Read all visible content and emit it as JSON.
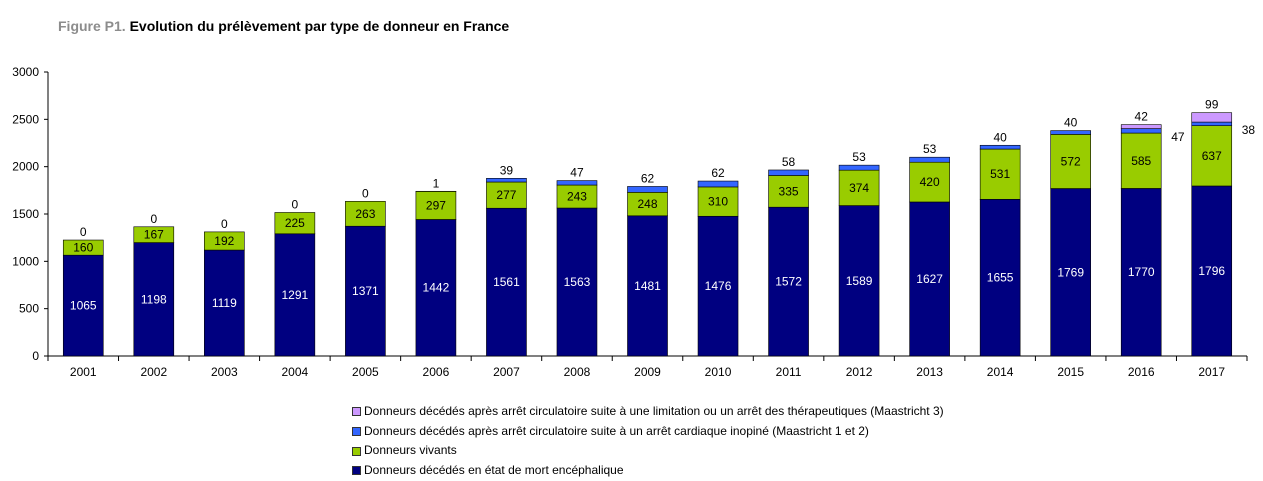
{
  "title": {
    "prefix": "Figure P1.",
    "text": "Evolution du prélèvement par type de donneur en France"
  },
  "chart_data": {
    "type": "bar",
    "stacked": true,
    "categories": [
      "2001",
      "2002",
      "2003",
      "2004",
      "2005",
      "2006",
      "2007",
      "2008",
      "2009",
      "2010",
      "2011",
      "2012",
      "2013",
      "2014",
      "2015",
      "2016",
      "2017"
    ],
    "series": [
      {
        "name": "Donneurs décédés en état de mort encéphalique",
        "color": "#000080",
        "values": [
          1065,
          1198,
          1119,
          1291,
          1371,
          1442,
          1561,
          1563,
          1481,
          1476,
          1572,
          1589,
          1627,
          1655,
          1769,
          1770,
          1796
        ]
      },
      {
        "name": "Donneurs vivants",
        "color": "#99cc00",
        "values": [
          160,
          167,
          192,
          225,
          263,
          297,
          277,
          243,
          248,
          310,
          335,
          374,
          420,
          531,
          572,
          585,
          637
        ]
      },
      {
        "name": "Donneurs décédés après arrêt circulatoire suite à un arrêt cardiaque inopiné (Maastricht 1 et 2)",
        "color": "#3366ff",
        "values": [
          0,
          0,
          0,
          0,
          0,
          1,
          39,
          47,
          62,
          62,
          58,
          53,
          53,
          40,
          40,
          47,
          38
        ]
      },
      {
        "name": "Donneurs décédés après arrêt circulatoire suite à une limitation ou un arrêt des thérapeutiques (Maastricht 3)",
        "color": "#cc99ff",
        "values": [
          0,
          0,
          0,
          0,
          0,
          0,
          0,
          0,
          0,
          0,
          0,
          0,
          0,
          0,
          0,
          42,
          99
        ]
      }
    ],
    "yticks": [
      "0",
      "500",
      "1000",
      "1500",
      "2000",
      "2500",
      "3000"
    ],
    "ylim": [
      0,
      3000
    ],
    "grid": false,
    "legend_position": "bottom",
    "legend_order": [
      3,
      2,
      1,
      0
    ]
  }
}
